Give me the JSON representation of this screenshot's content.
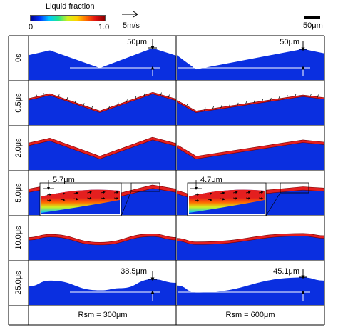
{
  "legend": {
    "title": "Liquid fraction",
    "min_label": "0",
    "max_label": "1.0",
    "colors": [
      "#00008f",
      "#0033ff",
      "#00c8ff",
      "#22e68a",
      "#d2f01e",
      "#ffd200",
      "#ff6a00",
      "#e01010",
      "#8a0000"
    ]
  },
  "velocity_ref": {
    "label": "5m/s"
  },
  "scale_bar": {
    "label": "50μm"
  },
  "rows": [
    {
      "time": "0s"
    },
    {
      "time": "0.5μs"
    },
    {
      "time": "2.0μs"
    },
    {
      "time": "5.0μs"
    },
    {
      "time": "10.0μs"
    },
    {
      "time": "25.0μs"
    }
  ],
  "annotations": {
    "left_0s_height": "50μm",
    "right_0s_height": "50μm",
    "left_5us_depth": "5.7μm",
    "right_5us_depth": "4.7μm",
    "left_25us_height": "38.5μm",
    "right_25us_height": "45.1μm"
  },
  "columns": [
    {
      "label": "Rsm = 300μm"
    },
    {
      "label": "Rsm = 600μm"
    }
  ],
  "colors": {
    "substrate": "#0a2fe0",
    "melt": "#e41f1f",
    "melt_edge": "#7a0000",
    "grid": "#000000"
  }
}
